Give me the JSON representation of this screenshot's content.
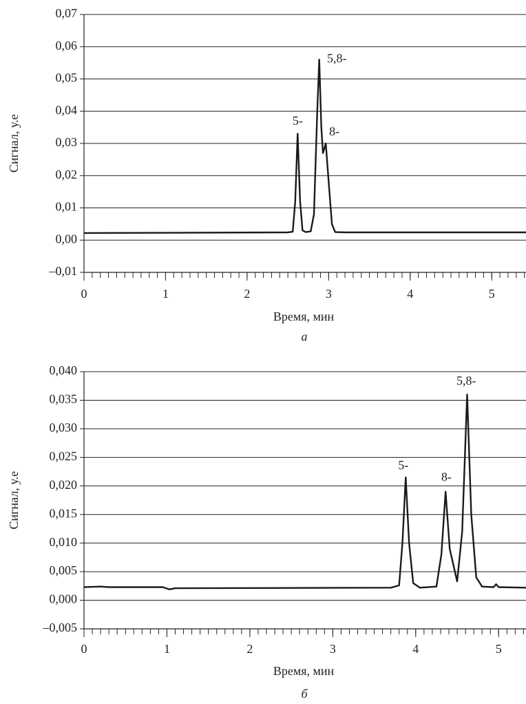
{
  "chart_data": [
    {
      "type": "line",
      "caption": "а",
      "xlabel": "Время,  мин",
      "ylabel": "Сигнал,  у.е",
      "xlim": [
        0,
        5.42
      ],
      "xticks": [
        0,
        1,
        2,
        3,
        4,
        5
      ],
      "minor_ticks_per_major": 10,
      "ylim": [
        -0.01,
        0.07
      ],
      "yticks": [
        {
          "value": -0.01,
          "label": "–0,01"
        },
        {
          "value": 0,
          "label": "0,00"
        },
        {
          "value": 0.01,
          "label": "0,01"
        },
        {
          "value": 0.02,
          "label": "0,02"
        },
        {
          "value": 0.03,
          "label": "0,03"
        },
        {
          "value": 0.04,
          "label": "0,04"
        },
        {
          "value": 0.05,
          "label": "0,05"
        },
        {
          "value": 0.06,
          "label": "0,06"
        },
        {
          "value": 0.07,
          "label": "0,07"
        }
      ],
      "grid": true,
      "series": [
        {
          "color": "#1a1a1a",
          "x": [
            0,
            2.5,
            2.56,
            2.59,
            2.62,
            2.65,
            2.68,
            2.72,
            2.78,
            2.82,
            2.86,
            2.885,
            2.91,
            2.93,
            2.965,
            3.0,
            3.04,
            3.08,
            3.2,
            5.42
          ],
          "values": [
            0.0022,
            0.0024,
            0.0026,
            0.012,
            0.033,
            0.012,
            0.003,
            0.0025,
            0.0027,
            0.008,
            0.04,
            0.056,
            0.035,
            0.027,
            0.03,
            0.018,
            0.005,
            0.0025,
            0.0024,
            0.0024
          ]
        }
      ],
      "annotations": [
        {
          "text": "5-",
          "x": 2.62,
          "y": 0.0367
        },
        {
          "text": "5,8-",
          "x": 3.1,
          "y": 0.056
        },
        {
          "text": "8-",
          "x": 3.07,
          "y": 0.0333
        }
      ]
    },
    {
      "type": "line",
      "caption": "б",
      "xlabel": "Время,  мин",
      "ylabel": "Сигнал,  у.е",
      "xlim": [
        0,
        5.33
      ],
      "xticks": [
        0,
        1,
        2,
        3,
        4,
        5
      ],
      "minor_ticks_per_major": 10,
      "ylim": [
        -0.005,
        0.04
      ],
      "yticks": [
        {
          "value": -0.005,
          "label": "–0,005"
        },
        {
          "value": 0,
          "label": "0,000"
        },
        {
          "value": 0.005,
          "label": "0,005"
        },
        {
          "value": 0.01,
          "label": "0,010"
        },
        {
          "value": 0.015,
          "label": "0,015"
        },
        {
          "value": 0.02,
          "label": "0,020"
        },
        {
          "value": 0.025,
          "label": "0,025"
        },
        {
          "value": 0.03,
          "label": "0,030"
        },
        {
          "value": 0.035,
          "label": "0,035"
        },
        {
          "value": 0.04,
          "label": "0,040"
        }
      ],
      "grid": true,
      "series": [
        {
          "color": "#1a1a1a",
          "x": [
            0,
            0.2,
            0.3,
            0.95,
            1.03,
            1.1,
            3.7,
            3.8,
            3.84,
            3.88,
            3.92,
            3.97,
            4.05,
            4.25,
            4.31,
            4.36,
            4.41,
            4.5,
            4.56,
            4.62,
            4.67,
            4.73,
            4.8,
            4.94,
            4.97,
            5.0,
            5.33
          ],
          "values": [
            0.0023,
            0.0024,
            0.0023,
            0.0023,
            0.0019,
            0.0021,
            0.0022,
            0.0026,
            0.01,
            0.0215,
            0.01,
            0.003,
            0.0022,
            0.0024,
            0.008,
            0.019,
            0.009,
            0.0033,
            0.012,
            0.036,
            0.015,
            0.004,
            0.0024,
            0.0023,
            0.0028,
            0.0023,
            0.0022
          ]
        }
      ],
      "annotations": [
        {
          "text": "5-",
          "x": 3.85,
          "y": 0.0234
        },
        {
          "text": "8-",
          "x": 4.37,
          "y": 0.0214
        },
        {
          "text": "5,8-",
          "x": 4.61,
          "y": 0.0382
        }
      ]
    }
  ]
}
